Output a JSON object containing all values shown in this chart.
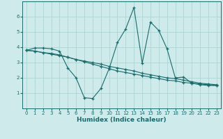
{
  "xlabel": "Humidex (Indice chaleur)",
  "bg_color": "#ceeaea",
  "line_color": "#1a6b6b",
  "grid_color": "#aed4d4",
  "xlim": [
    -0.5,
    23.5
  ],
  "ylim": [
    0,
    7
  ],
  "yticks": [
    1,
    2,
    3,
    4,
    5,
    6
  ],
  "xticks": [
    0,
    1,
    2,
    3,
    4,
    5,
    6,
    7,
    8,
    9,
    10,
    11,
    12,
    13,
    14,
    15,
    16,
    17,
    18,
    19,
    20,
    21,
    22,
    23
  ],
  "line1_x": [
    0,
    1,
    2,
    3,
    4,
    5,
    6,
    7,
    8,
    9,
    10,
    11,
    12,
    13,
    14,
    15,
    16,
    17,
    18,
    19,
    20,
    21,
    22,
    23
  ],
  "line1_y": [
    3.8,
    3.95,
    3.95,
    3.9,
    3.75,
    2.65,
    2.0,
    0.7,
    0.65,
    1.3,
    2.6,
    4.3,
    5.2,
    6.6,
    2.95,
    5.65,
    5.1,
    3.9,
    2.0,
    2.05,
    1.65,
    1.55,
    1.5,
    1.5
  ],
  "line2_x": [
    0,
    1,
    2,
    3,
    4,
    5,
    6,
    7,
    8,
    9,
    10,
    11,
    12,
    13,
    14,
    15,
    16,
    17,
    18,
    19,
    20,
    21,
    22,
    23
  ],
  "line2_y": [
    3.8,
    3.75,
    3.65,
    3.55,
    3.45,
    3.35,
    3.2,
    3.1,
    3.0,
    2.9,
    2.75,
    2.65,
    2.55,
    2.45,
    2.3,
    2.2,
    2.1,
    2.0,
    1.95,
    1.85,
    1.75,
    1.65,
    1.6,
    1.55
  ],
  "line3_x": [
    0,
    1,
    2,
    3,
    4,
    5,
    6,
    7,
    8,
    9,
    10,
    11,
    12,
    13,
    14,
    15,
    16,
    17,
    18,
    19,
    20,
    21,
    22,
    23
  ],
  "line3_y": [
    3.8,
    3.75,
    3.65,
    3.6,
    3.5,
    3.35,
    3.2,
    3.05,
    2.9,
    2.75,
    2.6,
    2.45,
    2.35,
    2.25,
    2.15,
    2.05,
    1.95,
    1.85,
    1.8,
    1.7,
    1.65,
    1.6,
    1.55,
    1.5
  ],
  "xlabel_fontsize": 6.5,
  "tick_fontsize": 5.0
}
